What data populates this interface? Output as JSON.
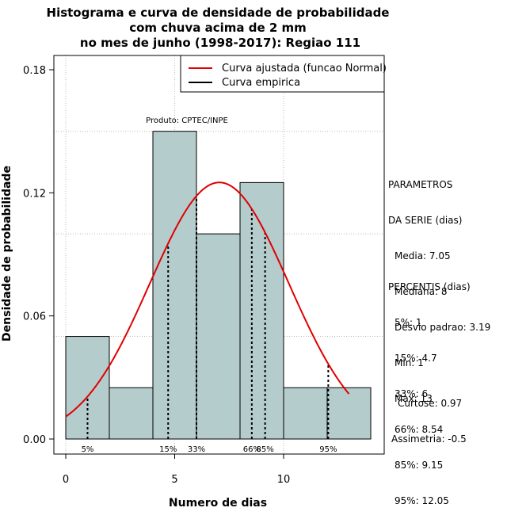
{
  "chart_data": {
    "type": "histogram",
    "title_lines": [
      "Histograma e curva de densidade de probabilidade",
      "com chuva acima de 2 mm",
      "no mes de junho (1998-2017): Regiao 111"
    ],
    "xlabel": "Numero de dias",
    "ylabel": "Densidade de probabilidade",
    "xlim": [
      -1,
      15
    ],
    "ylim": [
      0,
      0.18
    ],
    "x_ticks": [
      0,
      5,
      10
    ],
    "y_ticks": [
      0.0,
      0.06,
      0.12,
      0.18
    ],
    "y_tick_labels": [
      "0.00",
      "0.06",
      "0.12",
      "0.18"
    ],
    "grid_x": [
      0,
      5,
      10
    ],
    "grid_y": [
      0.05,
      0.1,
      0.15
    ],
    "bins": [
      {
        "x0": 0,
        "x1": 2,
        "density": 0.05
      },
      {
        "x0": 2,
        "x1": 4,
        "density": 0.025
      },
      {
        "x0": 4,
        "x1": 6,
        "density": 0.15
      },
      {
        "x0": 6,
        "x1": 8,
        "density": 0.1
      },
      {
        "x0": 8,
        "x1": 10,
        "density": 0.125
      },
      {
        "x0": 10,
        "x1": 12,
        "density": 0.025
      },
      {
        "x0": 12,
        "x1": 14,
        "density": 0.025
      }
    ],
    "normal_curve": {
      "mean": 7.05,
      "sd": 3.19,
      "x_from": 0,
      "x_to": 13,
      "color": "#e00000"
    },
    "percentile_lines": [
      {
        "label": "5%",
        "x": 1
      },
      {
        "label": "15%",
        "x": 4.7
      },
      {
        "label": "33%",
        "x": 6
      },
      {
        "label": "66%",
        "x": 8.54
      },
      {
        "label": "85%",
        "x": 9.15
      },
      {
        "label": "95%",
        "x": 12.05
      }
    ],
    "legend": [
      {
        "label": "Curva ajustada (funcao Normal)",
        "color": "#e00000"
      },
      {
        "label": "Curva empirica",
        "color": "#000000"
      }
    ],
    "legend_position": "top-right",
    "annotation": "Produto: CPTEC/INPE",
    "bar_color": "#b5cccc"
  },
  "parameters": {
    "heading": [
      "PARAMETROS",
      "DA SERIE (dias)"
    ],
    "items": [
      "Media: 7.05",
      "Mediana: 8",
      "Desvio padrao: 3.19",
      "Min: 1",
      "Max: 13"
    ]
  },
  "percentiles": {
    "heading": "PERCENTIS (dias)",
    "items": [
      "5%: 1",
      "15%: 4.7",
      "33%: 6",
      "66%: 8.54",
      "85%: 9.15",
      "95%: 12.05"
    ]
  },
  "shape": {
    "curtose": "Curtose: 0.97",
    "assimetria": "Assimetria: -0.5"
  }
}
